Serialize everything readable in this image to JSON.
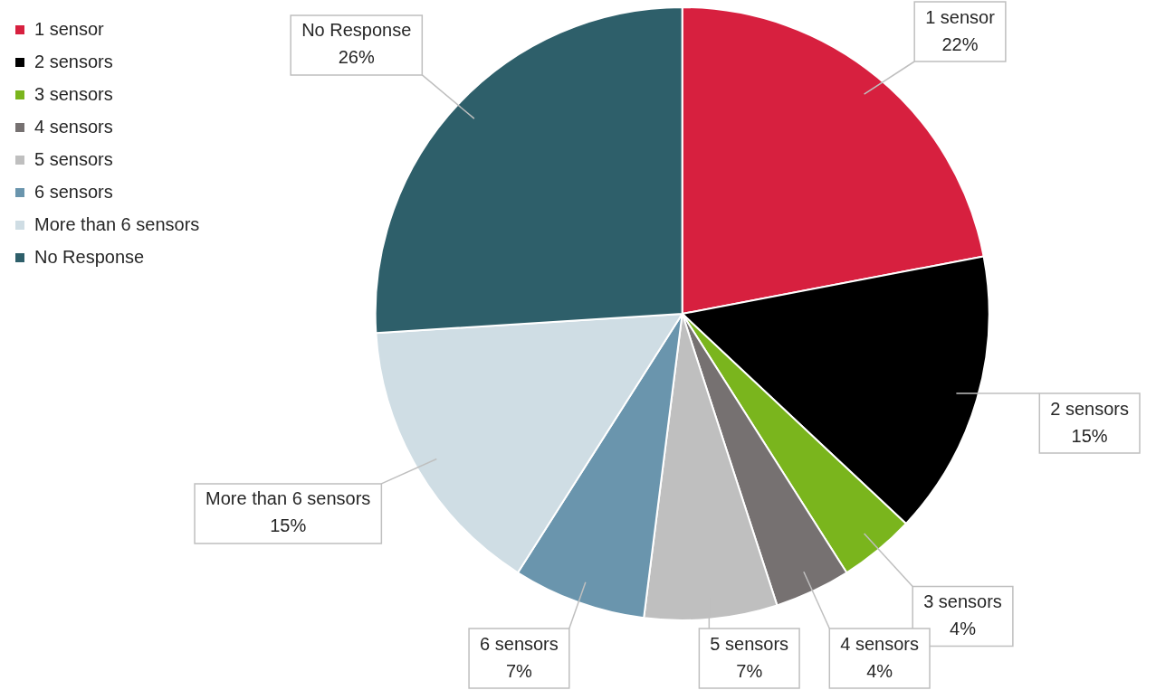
{
  "chart_data": {
    "type": "pie",
    "categories": [
      "1 sensor",
      "2 sensors",
      "3 sensors",
      "4 sensors",
      "5 sensors",
      "6 sensors",
      "More than 6 sensors",
      "No Response"
    ],
    "values": [
      22,
      15,
      4,
      4,
      7,
      7,
      15,
      26
    ],
    "colors": [
      "#d7203f",
      "#000000",
      "#7ab51d",
      "#767171",
      "#bfbfbf",
      "#6a95ad",
      "#cfdde4",
      "#2e5f6a"
    ],
    "value_labels": [
      "22%",
      "15%",
      "4%",
      "4%",
      "7%",
      "7%",
      "15%",
      "26%"
    ],
    "legend": "left"
  }
}
